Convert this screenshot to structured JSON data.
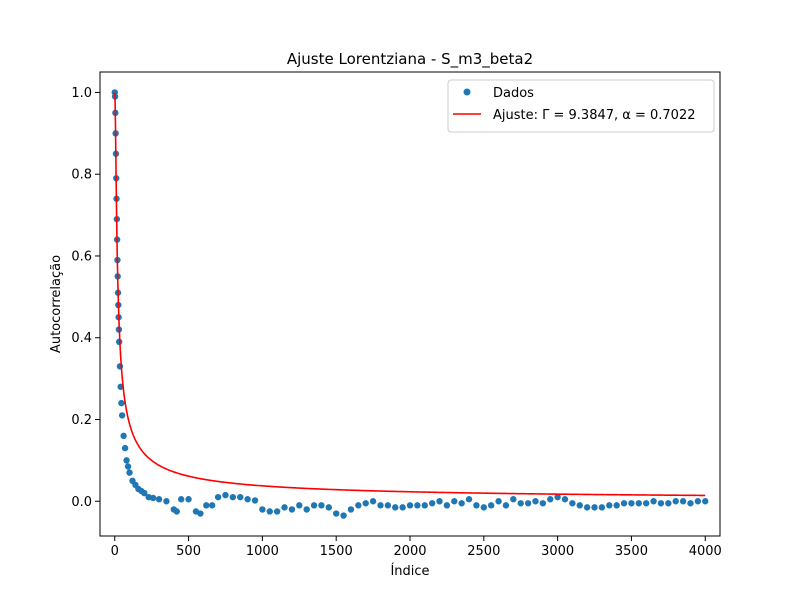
{
  "chart_data": {
    "type": "scatter",
    "title": "Ajuste Lorentziana - S_m3_beta2",
    "xlabel": "Índice",
    "ylabel": "Autocorrelação",
    "xlim": [
      -100,
      4100
    ],
    "ylim": [
      -0.085,
      1.05
    ],
    "xticks": [
      0,
      500,
      1000,
      1500,
      2000,
      2500,
      3000,
      3500,
      4000
    ],
    "xtick_labels": [
      "0",
      "500",
      "1000",
      "1500",
      "2000",
      "2500",
      "3000",
      "3500",
      "4000"
    ],
    "yticks": [
      0.0,
      0.2,
      0.4,
      0.6,
      0.8,
      1.0
    ],
    "ytick_labels": [
      "0.0",
      "0.2",
      "0.4",
      "0.6",
      "0.8",
      "1.0"
    ],
    "grid": false,
    "legend_position": "top-right",
    "legend": [
      "Dados",
      "Ajuste: Γ = 9.3847, α = 0.7022"
    ],
    "colors": {
      "dados": "#1f77b4",
      "ajuste": "#ff0000"
    },
    "series": [
      {
        "name": "Dados",
        "kind": "scatter",
        "x": [
          0,
          2,
          4,
          6,
          8,
          10,
          12,
          14,
          16,
          18,
          20,
          22,
          24,
          26,
          28,
          30,
          35,
          40,
          45,
          50,
          60,
          70,
          80,
          90,
          100,
          120,
          140,
          160,
          180,
          200,
          230,
          260,
          300,
          350,
          400,
          420,
          450,
          500,
          550,
          580,
          620,
          660,
          700,
          750,
          800,
          850,
          900,
          950,
          1000,
          1050,
          1100,
          1150,
          1200,
          1250,
          1300,
          1350,
          1400,
          1450,
          1500,
          1550,
          1600,
          1650,
          1700,
          1750,
          1800,
          1850,
          1900,
          1950,
          2000,
          2050,
          2100,
          2150,
          2200,
          2250,
          2300,
          2350,
          2400,
          2450,
          2500,
          2550,
          2600,
          2650,
          2700,
          2750,
          2800,
          2850,
          2900,
          2950,
          3000,
          3050,
          3100,
          3150,
          3200,
          3250,
          3300,
          3350,
          3400,
          3450,
          3500,
          3550,
          3600,
          3650,
          3700,
          3750,
          3800,
          3850,
          3900,
          3950,
          4000
        ],
        "y": [
          1.0,
          0.99,
          0.95,
          0.9,
          0.85,
          0.79,
          0.74,
          0.69,
          0.64,
          0.59,
          0.55,
          0.51,
          0.48,
          0.45,
          0.42,
          0.39,
          0.33,
          0.28,
          0.24,
          0.21,
          0.16,
          0.13,
          0.1,
          0.085,
          0.07,
          0.05,
          0.04,
          0.03,
          0.025,
          0.02,
          0.01,
          0.008,
          0.005,
          0.0,
          -0.02,
          -0.025,
          0.005,
          0.005,
          -0.025,
          -0.03,
          -0.01,
          -0.01,
          0.01,
          0.015,
          0.01,
          0.01,
          0.005,
          0.002,
          -0.02,
          -0.025,
          -0.025,
          -0.015,
          -0.02,
          -0.01,
          -0.02,
          -0.01,
          -0.01,
          -0.015,
          -0.03,
          -0.035,
          -0.02,
          -0.01,
          -0.005,
          0.0,
          -0.01,
          -0.01,
          -0.015,
          -0.015,
          -0.01,
          -0.01,
          -0.01,
          -0.005,
          0.0,
          -0.01,
          0.0,
          -0.005,
          0.005,
          -0.01,
          -0.015,
          -0.01,
          0.0,
          -0.01,
          0.005,
          -0.005,
          -0.005,
          0.0,
          -0.005,
          0.005,
          0.01,
          0.005,
          -0.005,
          -0.01,
          -0.015,
          -0.015,
          -0.015,
          -0.01,
          -0.01,
          -0.005,
          -0.005,
          -0.005,
          -0.005,
          0.0,
          -0.005,
          -0.005,
          0.0,
          0.0,
          -0.005,
          0.0,
          0.0
        ]
      },
      {
        "name": "Ajuste: Γ = 9.3847, α = 0.7022",
        "kind": "line",
        "gamma": 9.3847,
        "alpha": 0.7022
      }
    ]
  }
}
